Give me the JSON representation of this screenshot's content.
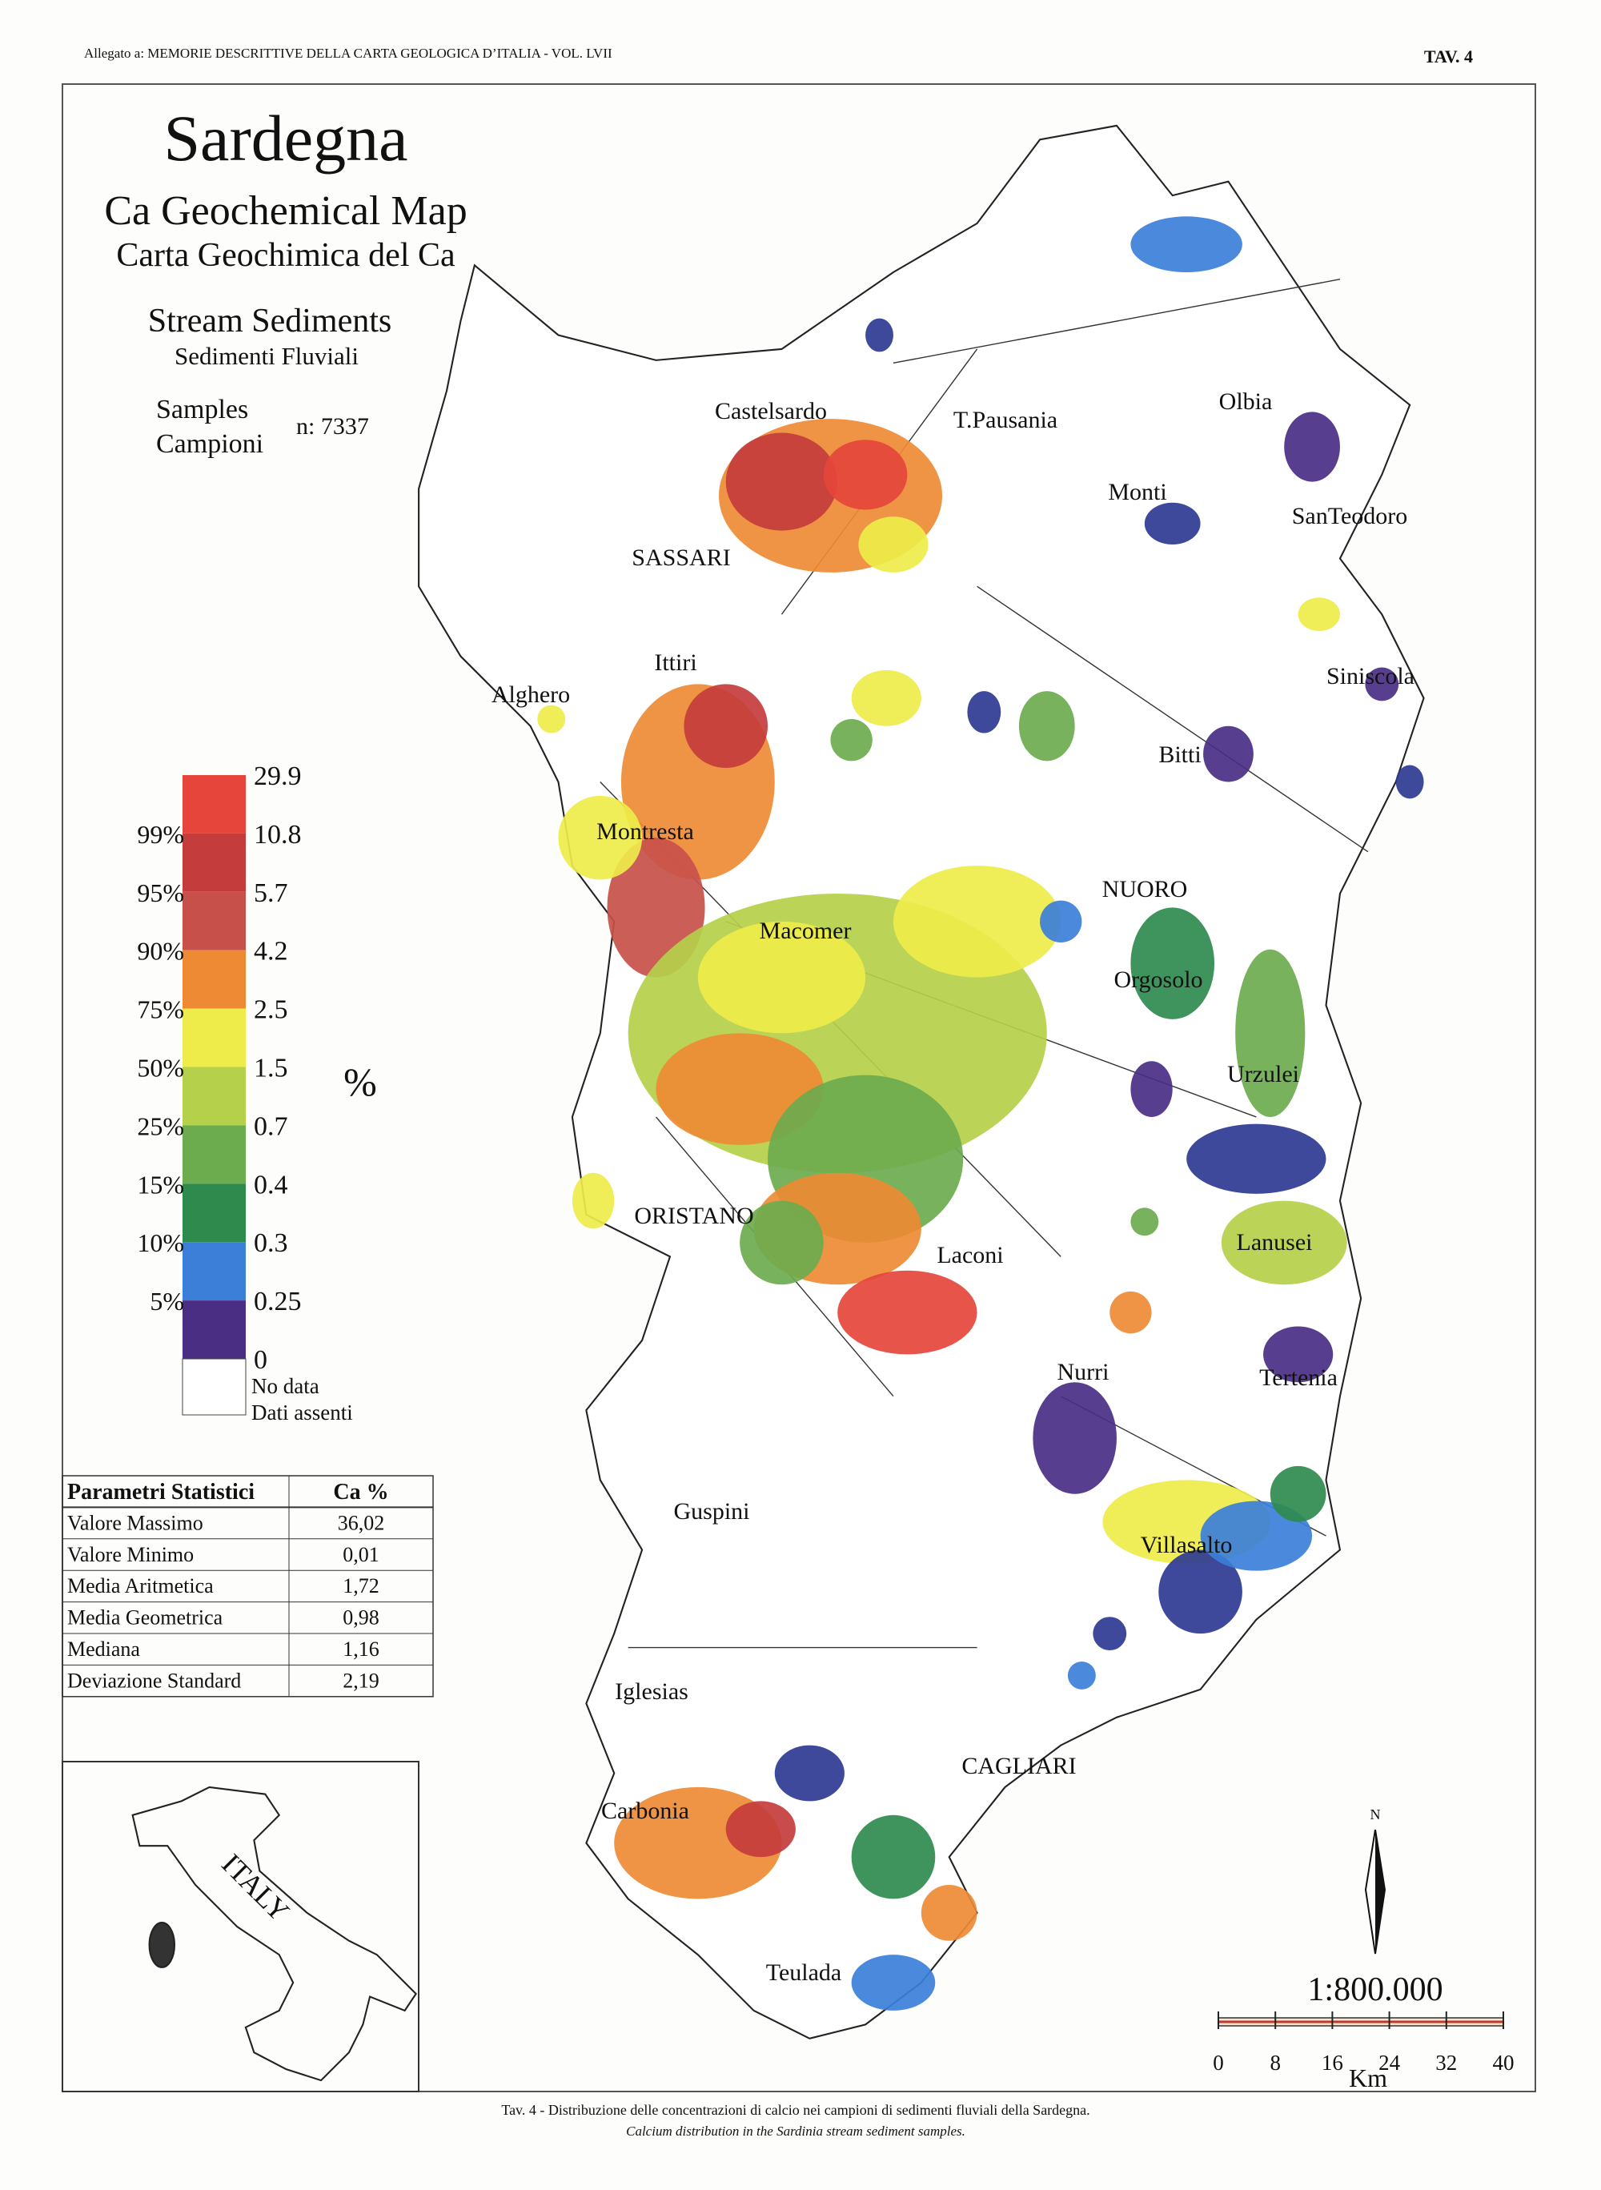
{
  "header": {
    "left": "Allegato a: MEMORIE DESCRITTIVE DELLA CARTA GEOLOGICA D’ITALIA - VOL. LVII",
    "right": "TAV. 4"
  },
  "title": "Sardegna",
  "subtitle": {
    "en": "Ca Geochemical Map",
    "it": "Carta Geochimica del Ca"
  },
  "sample_type": {
    "en": "Stream Sediments",
    "it": "Sedimenti Fluviali"
  },
  "samples": {
    "en": "Samples",
    "it": "Campioni",
    "count": "n: 7337"
  },
  "legend": {
    "values": [
      "29.9",
      "10.8",
      "5.7",
      "4.2",
      "2.5",
      "1.5",
      "0.7",
      "0.4",
      "0.3",
      "0.25",
      "0"
    ],
    "percentiles": [
      "99%",
      "95%",
      "90%",
      "75%",
      "50%",
      "25%",
      "15%",
      "10%",
      "5%"
    ],
    "colors": [
      "#e5453b",
      "#c43c3c",
      "#c8504a",
      "#ee8a34",
      "#eeec4a",
      "#b5d04a",
      "#6cab4e",
      "#2f8a4e",
      "#3b7fd9",
      "#4a2e84",
      "#2e3a92"
    ],
    "unit": "%",
    "no_data": {
      "it_en": "No data",
      "it": "Dati assenti",
      "color": "#ffffff"
    }
  },
  "stats": {
    "header": [
      "Parametri Statistici",
      "Ca  %"
    ],
    "rows": [
      [
        "Valore Massimo",
        "36,02"
      ],
      [
        "Valore Minimo",
        "0,01"
      ],
      [
        "Media Aritmetica",
        "1,72"
      ],
      [
        "Media Geometrica",
        "0,98"
      ],
      [
        "Mediana",
        "1,16"
      ],
      [
        "Deviazione Standard",
        "2,19"
      ]
    ]
  },
  "places": [
    "Castelsardo",
    "T.Pausania",
    "Olbia",
    "Monti",
    "SanTeodoro",
    "SASSARI",
    "Ittiri",
    "Alghero",
    "Siniscola",
    "Bitti",
    "Montresta",
    "NUORO",
    "Macomer",
    "Orgosolo",
    "Urzulei",
    "ORISTANO",
    "Laconi",
    "Lanusei",
    "Nurri",
    "Tertenia",
    "Villasalto",
    "Guspini",
    "Iglesias",
    "CAGLIARI",
    "Carbonia",
    "Teulada"
  ],
  "inset": {
    "label": "ITALY"
  },
  "north": "N",
  "scale": {
    "ratio": "1:800.000",
    "ticks": [
      "0",
      "8",
      "16",
      "24",
      "32",
      "40"
    ],
    "unit": "Km"
  },
  "caption": {
    "it": "Tav. 4 - Distribuzione delle concentrazioni di calcio nei campioni di sedimenti fluviali della Sardegna.",
    "en": "Calcium distribution in the Sardinia stream sediment samples."
  }
}
